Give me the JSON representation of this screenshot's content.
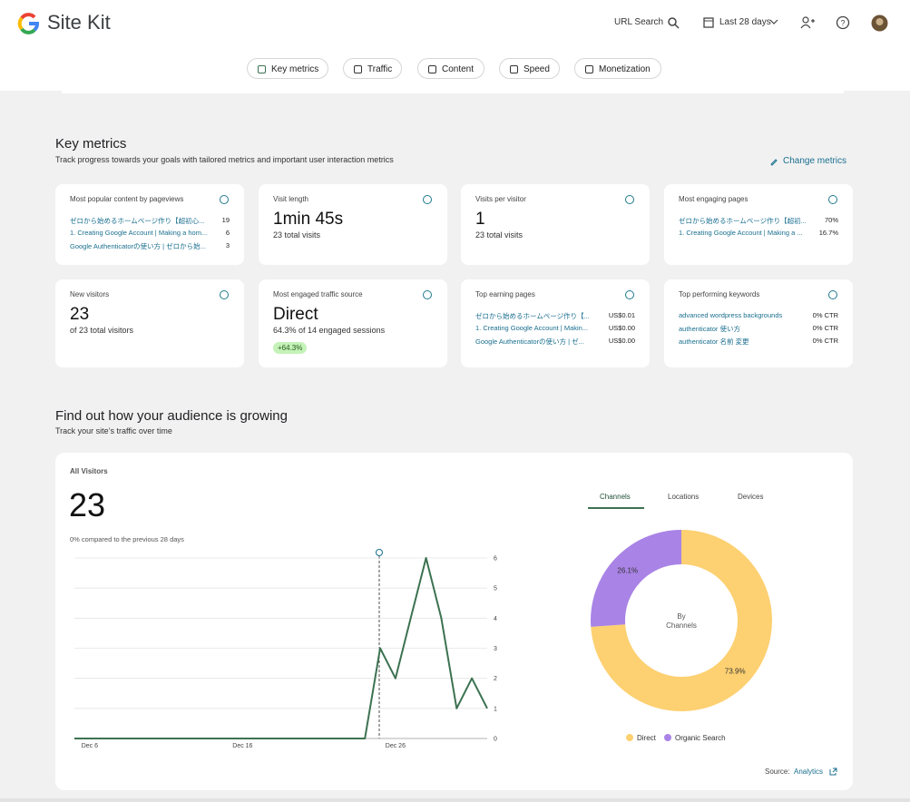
{
  "header": {
    "brand": "Site Kit",
    "url_search": "URL Search",
    "date_range": "Last 28 days"
  },
  "nav": [
    "Key metrics",
    "Traffic",
    "Content",
    "Speed",
    "Monetization"
  ],
  "key_metrics": {
    "title": "Key metrics",
    "subtitle": "Track progress towards your goals with tailored metrics and important user interaction metrics",
    "action": "Change metrics",
    "cards": [
      {
        "title": "Most popular content by pageviews",
        "rows": [
          {
            "label": "ゼロから始めるホームページ作り【超初心...",
            "value": "19"
          },
          {
            "label": "1. Creating Google Account | Making a hom...",
            "value": "6"
          },
          {
            "label": "Google Authenticatorの使い方 | ゼロから始...",
            "value": "3"
          }
        ]
      },
      {
        "title": "Visit length",
        "value": "1min 45s",
        "detail": "23 total visits"
      },
      {
        "title": "Visits per visitor",
        "value": "1",
        "detail": "23 total visits"
      },
      {
        "title": "Most engaging pages",
        "rows": [
          {
            "label": "ゼロから始めるホームページ作り【超初...",
            "value": "70%"
          },
          {
            "label": "1. Creating Google Account | Making a ...",
            "value": "16.7%"
          }
        ]
      },
      {
        "title": "New visitors",
        "value": "23",
        "detail": "of 23 total visitors"
      },
      {
        "title": "Most engaged traffic source",
        "value": "Direct",
        "detail": "64.3% of 14 engaged sessions",
        "badge": "+64.3%"
      },
      {
        "title": "Top earning pages",
        "rows": [
          {
            "label": "ゼロから始めるホームページ作り【...",
            "value": "US$0.01"
          },
          {
            "label": "1. Creating Google Account | Makin...",
            "value": "US$0.00"
          },
          {
            "label": "Google Authenticatorの使い方 | ゼ...",
            "value": "US$0.00"
          }
        ]
      },
      {
        "title": "Top performing keywords",
        "rows": [
          {
            "label": "advanced wordpress backgrounds",
            "value": "0% CTR"
          },
          {
            "label": "authenticator 使い方",
            "value": "0% CTR"
          },
          {
            "label": "authenticator 名前 変更",
            "value": "0% CTR"
          }
        ]
      }
    ]
  },
  "audience": {
    "title": "Find out how your audience is growing",
    "subtitle": "Track your site’s traffic over time",
    "metric_label": "All Visitors",
    "metric_value": "23",
    "comparison": "0% compared to the previous 28 days",
    "tabs": [
      "Channels",
      "Locations",
      "Devices"
    ],
    "source_label": "Source:",
    "source_link": "Analytics"
  },
  "chart_data": [
    {
      "type": "line",
      "categories": [
        null,
        "Dec 6",
        null,
        null,
        null,
        null,
        null,
        null,
        null,
        null,
        null,
        "Dec 16",
        null,
        null,
        null,
        null,
        null,
        null,
        null,
        null,
        null,
        "Dec 26",
        null,
        null,
        null,
        null,
        null,
        null
      ],
      "values": [
        0,
        0,
        0,
        0,
        0,
        0,
        0,
        0,
        0,
        0,
        0,
        0,
        0,
        0,
        0,
        0,
        0,
        0,
        0,
        0,
        3,
        2,
        4,
        6,
        4,
        1,
        2,
        1
      ],
      "color": "#3c7251",
      "ylim": [
        0,
        6
      ],
      "yticks": [
        0,
        1,
        2,
        3,
        4,
        5,
        6
      ],
      "grid": true
    },
    {
      "type": "pie",
      "categories": [
        "Direct",
        "Organic Search"
      ],
      "values": [
        73.9,
        26.1
      ],
      "value_labels": [
        "73.9%",
        "26.1%"
      ],
      "colors": [
        "#fdd071",
        "#a983e6"
      ],
      "center_label": [
        "By",
        "Channels"
      ],
      "legend": "bottom"
    }
  ]
}
